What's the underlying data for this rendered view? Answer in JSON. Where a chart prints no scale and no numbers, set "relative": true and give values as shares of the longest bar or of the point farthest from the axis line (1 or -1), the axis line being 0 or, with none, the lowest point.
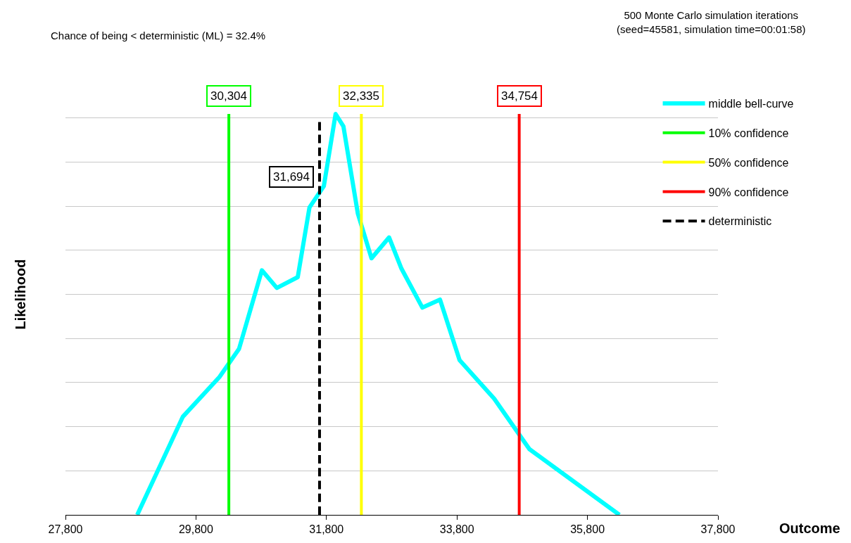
{
  "chart_data": {
    "type": "line",
    "relative": true,
    "xlabel": "Outcome",
    "ylabel": "Likelihood",
    "xlim": [
      27800,
      37800
    ],
    "xticks": [
      {
        "value": 27800,
        "label": "27,800"
      },
      {
        "value": 29800,
        "label": "29,800"
      },
      {
        "value": 31800,
        "label": "31,800"
      },
      {
        "value": 33800,
        "label": "33,800"
      },
      {
        "value": 35800,
        "label": "35,800"
      },
      {
        "value": 37800,
        "label": "37,800"
      }
    ],
    "grid": "y",
    "legend": "top right",
    "series": [
      {
        "name": "middle bell-curve",
        "color": "#00ffff",
        "x": [
          28900,
          29600,
          30160,
          30460,
          30810,
          31040,
          31360,
          31540,
          31760,
          31940,
          32060,
          32280,
          32490,
          32760,
          32950,
          33270,
          33540,
          33840,
          34370,
          34910,
          36290
        ],
        "values": [
          0,
          0.245,
          0.344,
          0.414,
          0.61,
          0.566,
          0.593,
          0.767,
          0.82,
          1.0,
          0.969,
          0.752,
          0.64,
          0.692,
          0.614,
          0.517,
          0.537,
          0.386,
          0.29,
          0.164,
          0
        ]
      },
      {
        "name": "10% confidence",
        "color": "#00ff00",
        "x": [
          30304,
          30304
        ],
        "values": [
          0,
          1.0
        ]
      },
      {
        "name": "50% confidence",
        "color": "#ffff00",
        "x": [
          32335,
          32335
        ],
        "values": [
          0,
          1.0
        ]
      },
      {
        "name": "90% confidence",
        "color": "#ff0000",
        "x": [
          34754,
          34754
        ],
        "values": [
          0,
          1.0
        ]
      },
      {
        "name": "deterministic",
        "color": "#000000",
        "x": [
          31694,
          31694
        ],
        "values": [
          0,
          0.98
        ],
        "line_style": "dashed"
      }
    ],
    "annotations": [
      "30,304",
      "32,335",
      "34,754",
      "31,694",
      "Chance of being < deterministic (ML) = 32.4%",
      "500 Monte Carlo simulation iterations\n(seed=45581, simulation time=00:01:58)"
    ]
  }
}
